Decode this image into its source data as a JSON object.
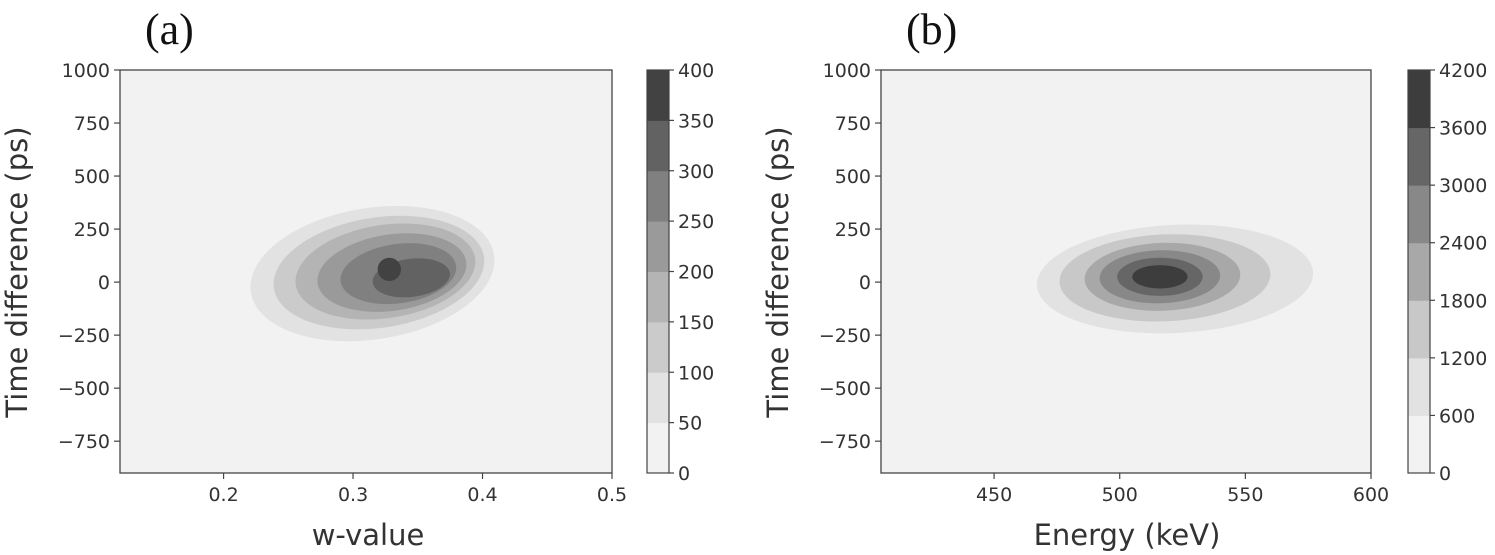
{
  "chart_data": [
    {
      "type": "contour",
      "panel_label": "(a)",
      "xlabel": "w-value",
      "ylabel": "Time difference (ps)",
      "xlim": [
        0.12,
        0.5
      ],
      "ylim": [
        -900,
        1000
      ],
      "xticks": [
        "0.2",
        "0.3",
        "0.4",
        "0.5"
      ],
      "yticks": [
        "1000",
        "750",
        "500",
        "250",
        "0",
        "−250",
        "−500",
        "−750"
      ],
      "colorbar": {
        "levels": [
          0,
          50,
          100,
          150,
          200,
          250,
          300,
          350,
          400
        ],
        "tick_labels": [
          "0",
          "50",
          "100",
          "150",
          "200",
          "250",
          "300",
          "350",
          "400"
        ]
      },
      "blobs": [
        {
          "level": 50,
          "cx": 0.315,
          "cy": 40,
          "rx": 0.095,
          "ry": 310,
          "rot": -0.29
        },
        {
          "level": 100,
          "cx": 0.32,
          "cy": 45,
          "rx": 0.082,
          "ry": 260,
          "rot": -0.29
        },
        {
          "level": 150,
          "cx": 0.325,
          "cy": 50,
          "rx": 0.07,
          "ry": 220,
          "rot": -0.29
        },
        {
          "level": 200,
          "cx": 0.33,
          "cy": 45,
          "rx": 0.058,
          "ry": 180,
          "rot": -0.29
        },
        {
          "level": 250,
          "cx": 0.335,
          "cy": 40,
          "rx": 0.045,
          "ry": 140,
          "rot": -0.27
        },
        {
          "level": 300,
          "cx": 0.345,
          "cy": 20,
          "rx": 0.03,
          "ry": 90,
          "rot": -0.25
        },
        {
          "level": 350,
          "cx": 0.328,
          "cy": 60,
          "rx": 0.009,
          "ry": 55,
          "rot": 0
        }
      ],
      "colors": [
        "#f2f2f2",
        "#e2e2e2",
        "#cbcbcb",
        "#b4b4b4",
        "#9a9a9a",
        "#808080",
        "#626262",
        "#424242",
        "#2a2a2a"
      ]
    },
    {
      "type": "contour",
      "panel_label": "(b)",
      "xlabel": "Energy (keV)",
      "ylabel": "Time difference (ps)",
      "xlim": [
        405,
        600
      ],
      "ylim": [
        -900,
        1000
      ],
      "xticks": [
        "450",
        "500",
        "550",
        "600"
      ],
      "yticks": [
        "1000",
        "750",
        "500",
        "250",
        "0",
        "−250",
        "−500",
        "−750"
      ],
      "colorbar": {
        "levels": [
          0,
          600,
          1200,
          1800,
          2400,
          3000,
          3600,
          4200
        ],
        "tick_labels": [
          "0",
          "600",
          "1200",
          "1800",
          "2400",
          "3000",
          "3600",
          "4200"
        ]
      },
      "blobs": [
        {
          "level": 600,
          "cx": 522,
          "cy": 15,
          "rx": 55,
          "ry": 255,
          "rot": -0.12
        },
        {
          "level": 1200,
          "cx": 518,
          "cy": 20,
          "rx": 42,
          "ry": 205,
          "rot": -0.1
        },
        {
          "level": 1800,
          "cx": 517,
          "cy": 25,
          "rx": 31,
          "ry": 160,
          "rot": -0.08
        },
        {
          "level": 2400,
          "cx": 516,
          "cy": 25,
          "rx": 24,
          "ry": 125,
          "rot": -0.06
        },
        {
          "level": 3000,
          "cx": 516,
          "cy": 25,
          "rx": 17,
          "ry": 90,
          "rot": 0
        },
        {
          "level": 3600,
          "cx": 516,
          "cy": 25,
          "rx": 11,
          "ry": 55,
          "rot": 0
        }
      ],
      "colors": [
        "#f2f2f2",
        "#e2e2e2",
        "#c8c8c8",
        "#a8a8a8",
        "#888888",
        "#666666",
        "#3d3d3d"
      ]
    }
  ]
}
